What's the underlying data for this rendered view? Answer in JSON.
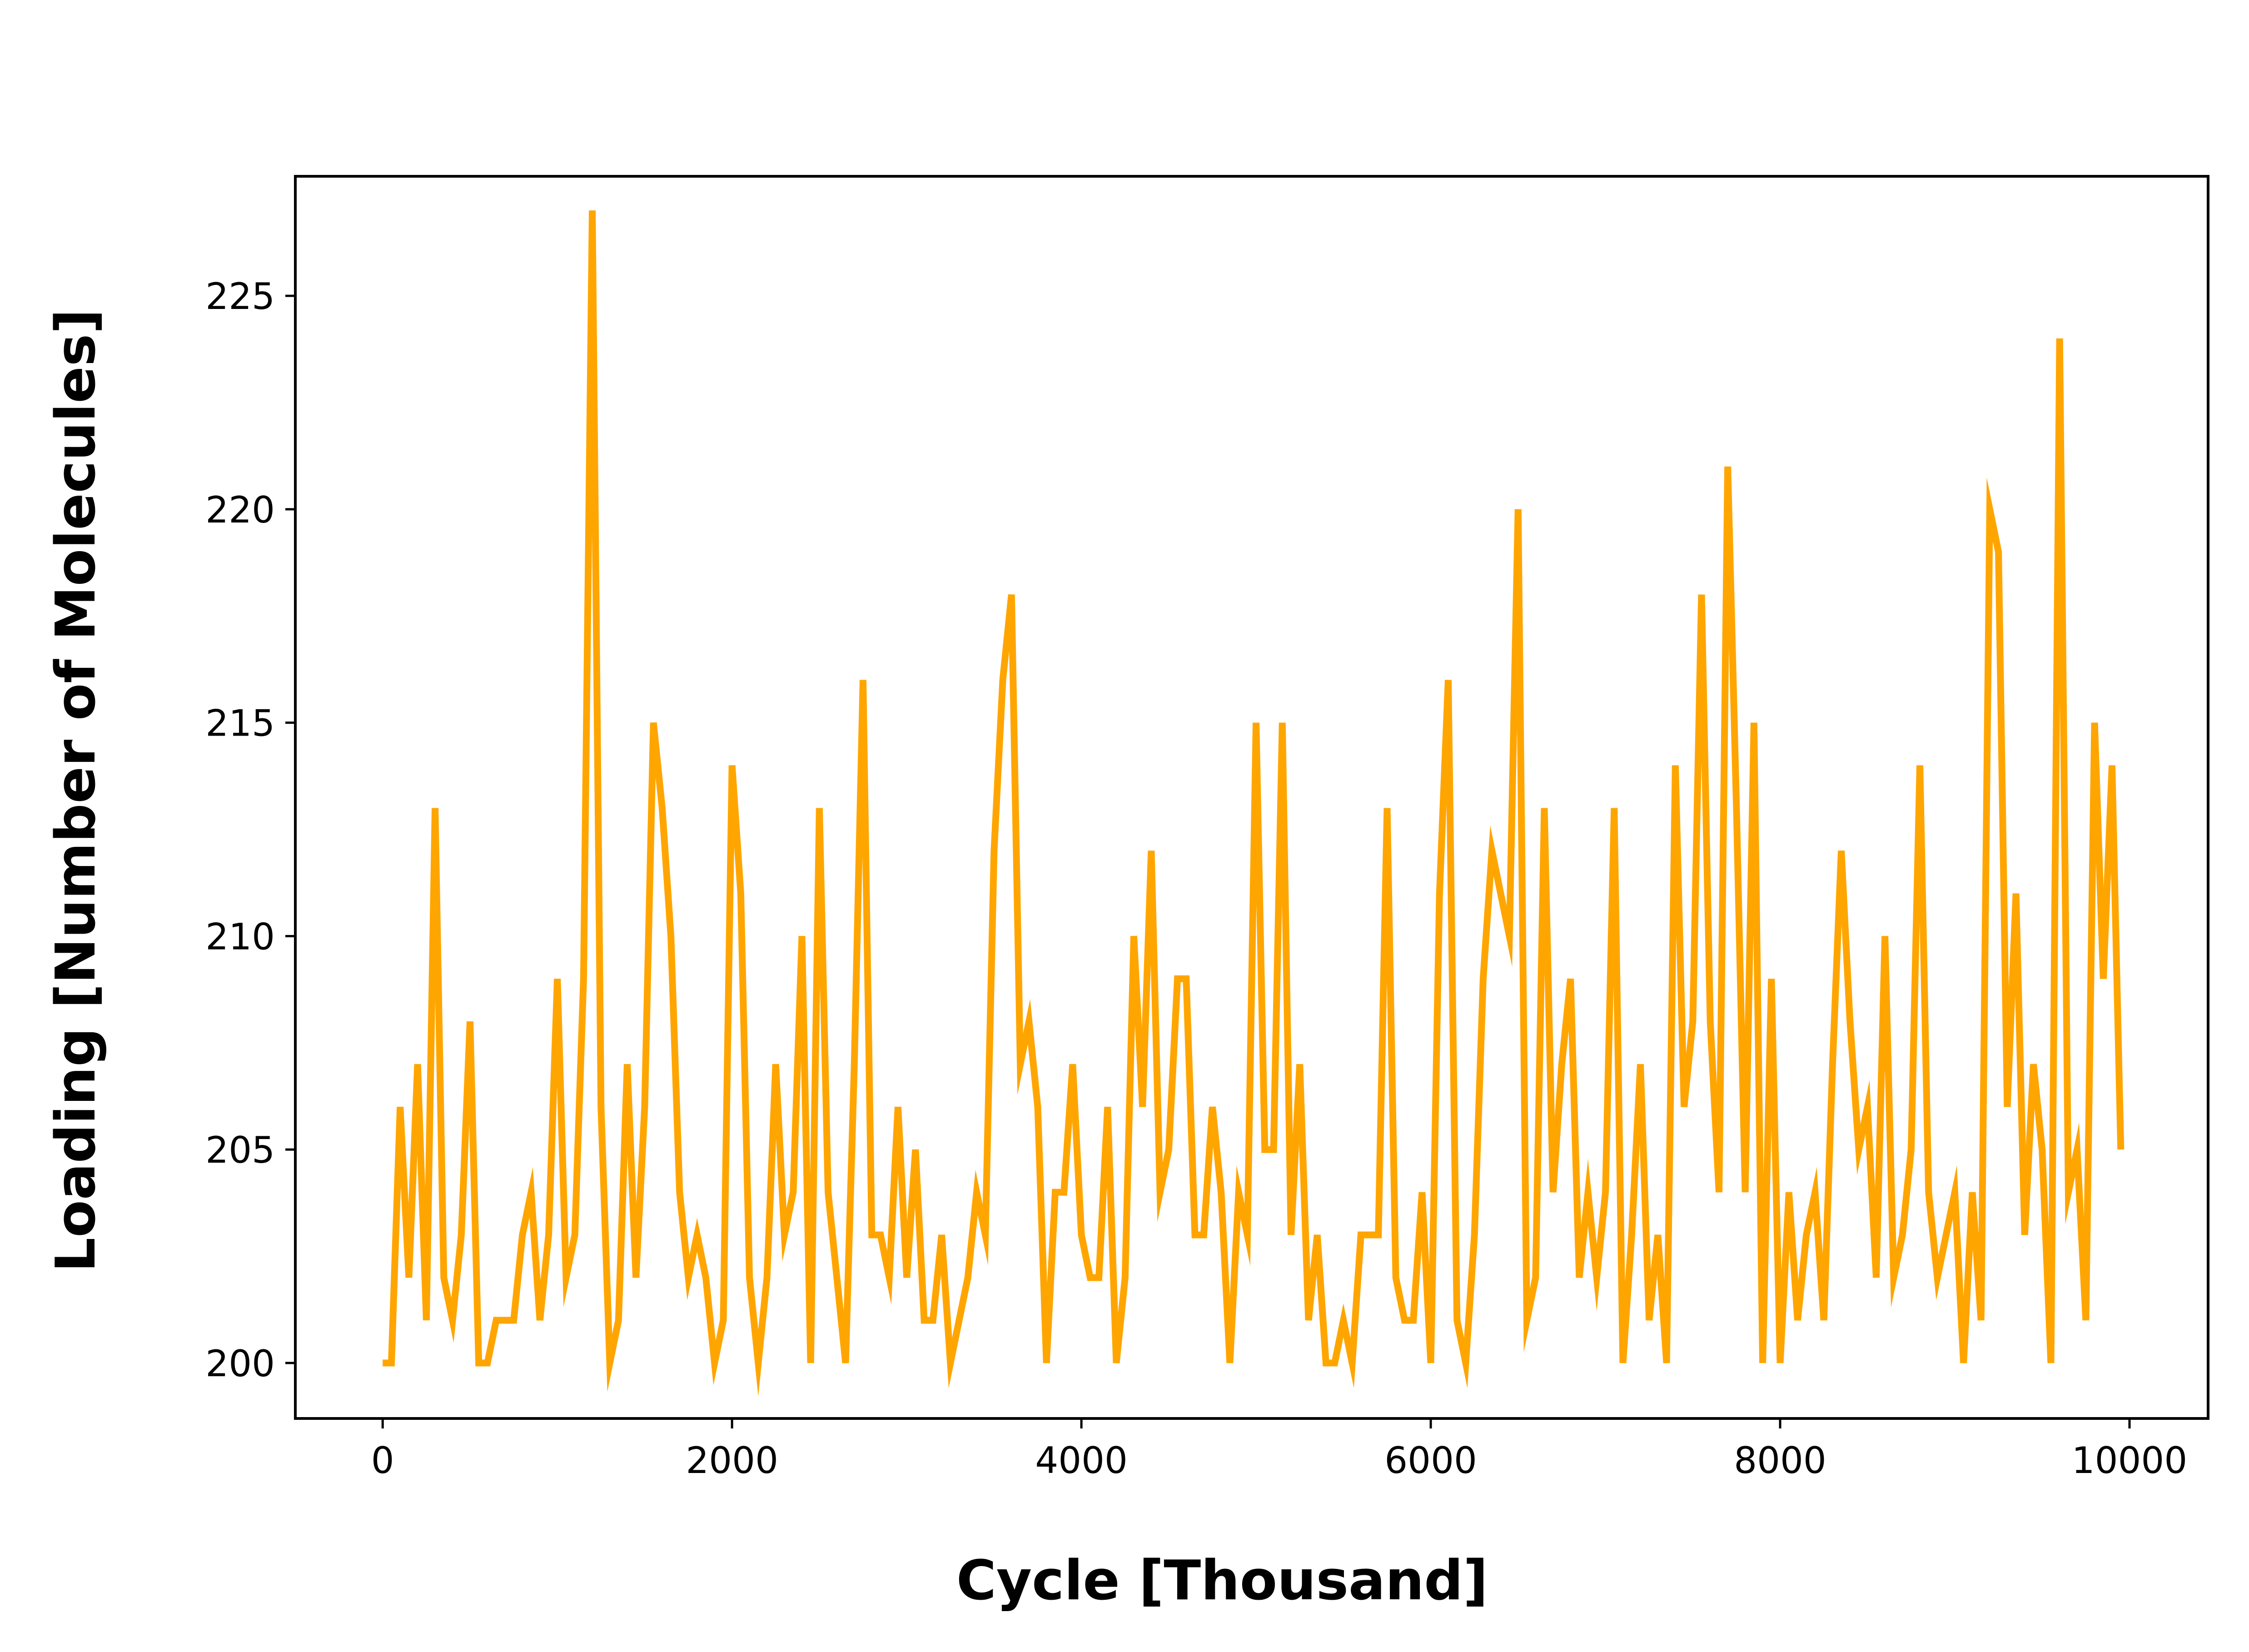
{
  "chart_data": {
    "type": "line",
    "title": "",
    "xlabel": "Cycle [Thousand]",
    "ylabel": "Loading [Number of Molecules]",
    "xlim": [
      -500,
      10450
    ],
    "ylim": [
      198.7,
      227.8
    ],
    "xticks": [
      0,
      2000,
      4000,
      6000,
      8000,
      10000
    ],
    "yticks": [
      200,
      205,
      210,
      215,
      220,
      225
    ],
    "grid": false,
    "legend": "none",
    "series": [
      {
        "color": "#FFA500",
        "x": [
          0,
          50,
          100,
          150,
          200,
          250,
          300,
          350,
          400,
          450,
          500,
          550,
          600,
          650,
          700,
          750,
          800,
          850,
          900,
          950,
          1000,
          1050,
          1100,
          1150,
          1200,
          1250,
          1300,
          1350,
          1400,
          1450,
          1500,
          1550,
          1600,
          1650,
          1700,
          1750,
          1800,
          1850,
          1900,
          1950,
          2000,
          2050,
          2100,
          2150,
          2200,
          2250,
          2300,
          2350,
          2400,
          2450,
          2500,
          2550,
          2600,
          2650,
          2700,
          2750,
          2800,
          2850,
          2900,
          2950,
          3000,
          3050,
          3100,
          3150,
          3200,
          3250,
          3300,
          3350,
          3400,
          3450,
          3500,
          3550,
          3600,
          3650,
          3700,
          3750,
          3800,
          3850,
          3900,
          3950,
          4000,
          4050,
          4100,
          4150,
          4200,
          4250,
          4300,
          4350,
          4400,
          4450,
          4500,
          4550,
          4600,
          4650,
          4700,
          4750,
          4800,
          4850,
          4900,
          4950,
          5000,
          5050,
          5100,
          5150,
          5200,
          5250,
          5300,
          5350,
          5400,
          5450,
          5500,
          5550,
          5600,
          5650,
          5700,
          5750,
          5800,
          5850,
          5900,
          5950,
          6000,
          6050,
          6100,
          6150,
          6200,
          6250,
          6300,
          6350,
          6400,
          6450,
          6500,
          6550,
          6600,
          6650,
          6700,
          6750,
          6800,
          6850,
          6900,
          6950,
          7000,
          7050,
          7100,
          7150,
          7200,
          7250,
          7300,
          7350,
          7400,
          7450,
          7500,
          7550,
          7600,
          7650,
          7700,
          7750,
          7800,
          7850,
          7900,
          7950,
          8000,
          8050,
          8100,
          8150,
          8200,
          8250,
          8300,
          8350,
          8400,
          8450,
          8500,
          8550,
          8600,
          8650,
          8700,
          8750,
          8800,
          8850,
          8900,
          8950,
          9000,
          9050,
          9100,
          9150,
          9200,
          9250,
          9300,
          9350,
          9400,
          9450,
          9500,
          9550,
          9600,
          9650,
          9700,
          9750,
          9800,
          9850,
          9900,
          9950
        ],
        "values": [
          200,
          200,
          206,
          202,
          207,
          201,
          213,
          202,
          201,
          203,
          208,
          200,
          200,
          201,
          201,
          201,
          203,
          204,
          201,
          203,
          209,
          202,
          203,
          209,
          227,
          206,
          200,
          201,
          207,
          202,
          206,
          215,
          213,
          210,
          204,
          202,
          203,
          202,
          200,
          201,
          214,
          211,
          202,
          200,
          202,
          207,
          203,
          204,
          210,
          200,
          213,
          204,
          202,
          200,
          207,
          216,
          203,
          203,
          202,
          206,
          202,
          205,
          201,
          201,
          203,
          200,
          201,
          202,
          204,
          203,
          212,
          216,
          218,
          207,
          208,
          206,
          200,
          204,
          204,
          207,
          203,
          202,
          202,
          206,
          200,
          202,
          210,
          206,
          212,
          204,
          205,
          209,
          209,
          203,
          203,
          206,
          204,
          200,
          204,
          203,
          215,
          205,
          205,
          215,
          203,
          207,
          201,
          203,
          200,
          200,
          201,
          200,
          203,
          203,
          203,
          213,
          202,
          201,
          201,
          204,
          200,
          211,
          216,
          201,
          200,
          203,
          209,
          212,
          211,
          210,
          220,
          201,
          202,
          213,
          204,
          207,
          209,
          202,
          204,
          202,
          204,
          213,
          200,
          203,
          207,
          201,
          203,
          200,
          214,
          206,
          208,
          218,
          208,
          204,
          221,
          213,
          204,
          215,
          200,
          209,
          200,
          204,
          201,
          203,
          204,
          201,
          207,
          212,
          208,
          205,
          206,
          202,
          210,
          202,
          203,
          205,
          214,
          204,
          202,
          203,
          204,
          200,
          204,
          201,
          220,
          219,
          206,
          211,
          203,
          207,
          205,
          200,
          224,
          204,
          205,
          201,
          215,
          209,
          214,
          205
        ]
      }
    ]
  }
}
